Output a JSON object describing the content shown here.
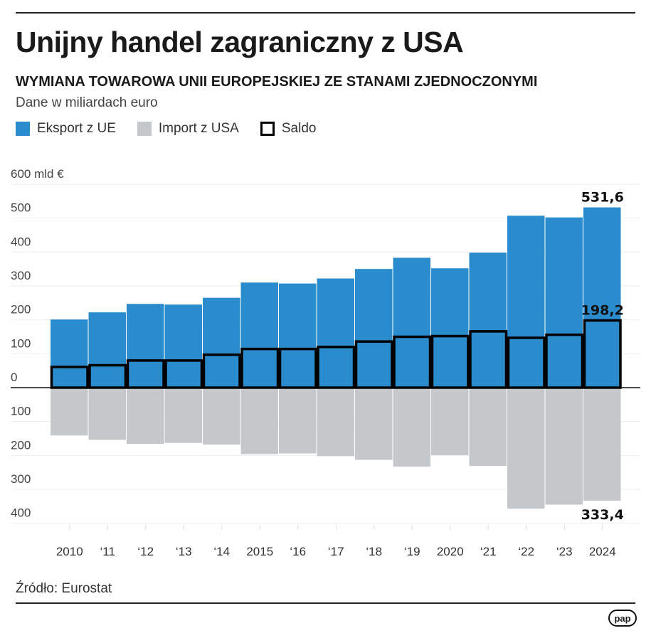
{
  "header": {
    "title": "Unijny handel zagraniczny z USA",
    "subtitle": "WYMIANA TOWAROWA UNII EUROPEJSKIEJ ZE STANAMI ZJEDNOCZONYMI",
    "unit_note": "Dane w miliardach euro"
  },
  "footer": {
    "source": "Źródło: Eurostat",
    "logo": "pap"
  },
  "colors": {
    "export": "#2a8ccc",
    "import": "#c4c8cb",
    "saldo": "#000000"
  },
  "chart_data": {
    "type": "bar",
    "title": "Unijny handel zagraniczny z USA",
    "ylabel": "600 mld €",
    "ylim": [
      -400,
      600
    ],
    "yticks": [
      600,
      500,
      400,
      300,
      200,
      100,
      0,
      -100,
      -200,
      -300,
      -400
    ],
    "ytick_labels": [
      "600 mld €",
      "500",
      "400",
      "300",
      "200",
      "100",
      "0",
      "100",
      "200",
      "300",
      "400"
    ],
    "grid": true,
    "legend": "top-left",
    "categories": [
      "2010",
      "‘11",
      "‘12",
      "‘13",
      "‘14",
      "2015",
      "‘16",
      "‘17",
      "‘18",
      "‘19",
      "2020",
      "‘21",
      "‘22",
      "‘23",
      "2024"
    ],
    "series": [
      {
        "name": "Eksport z UE",
        "values": [
          201,
          222,
          247,
          245,
          265,
          310,
          307,
          322,
          350,
          383,
          352,
          398,
          507,
          502,
          531.6
        ]
      },
      {
        "name": "Import z USA",
        "values": [
          -141,
          -154,
          -166,
          -163,
          -168,
          -196,
          -194,
          -202,
          -213,
          -233,
          -199,
          -231,
          -357,
          -345,
          -333.4
        ]
      },
      {
        "name": "Saldo",
        "values": [
          61,
          66,
          80,
          80,
          97,
          114,
          114,
          120,
          136,
          150,
          152,
          166,
          147,
          156,
          198.2
        ]
      }
    ],
    "data_labels": {
      "export_last": "531,6",
      "saldo_last": "198,2",
      "import_last": "333,4"
    }
  }
}
